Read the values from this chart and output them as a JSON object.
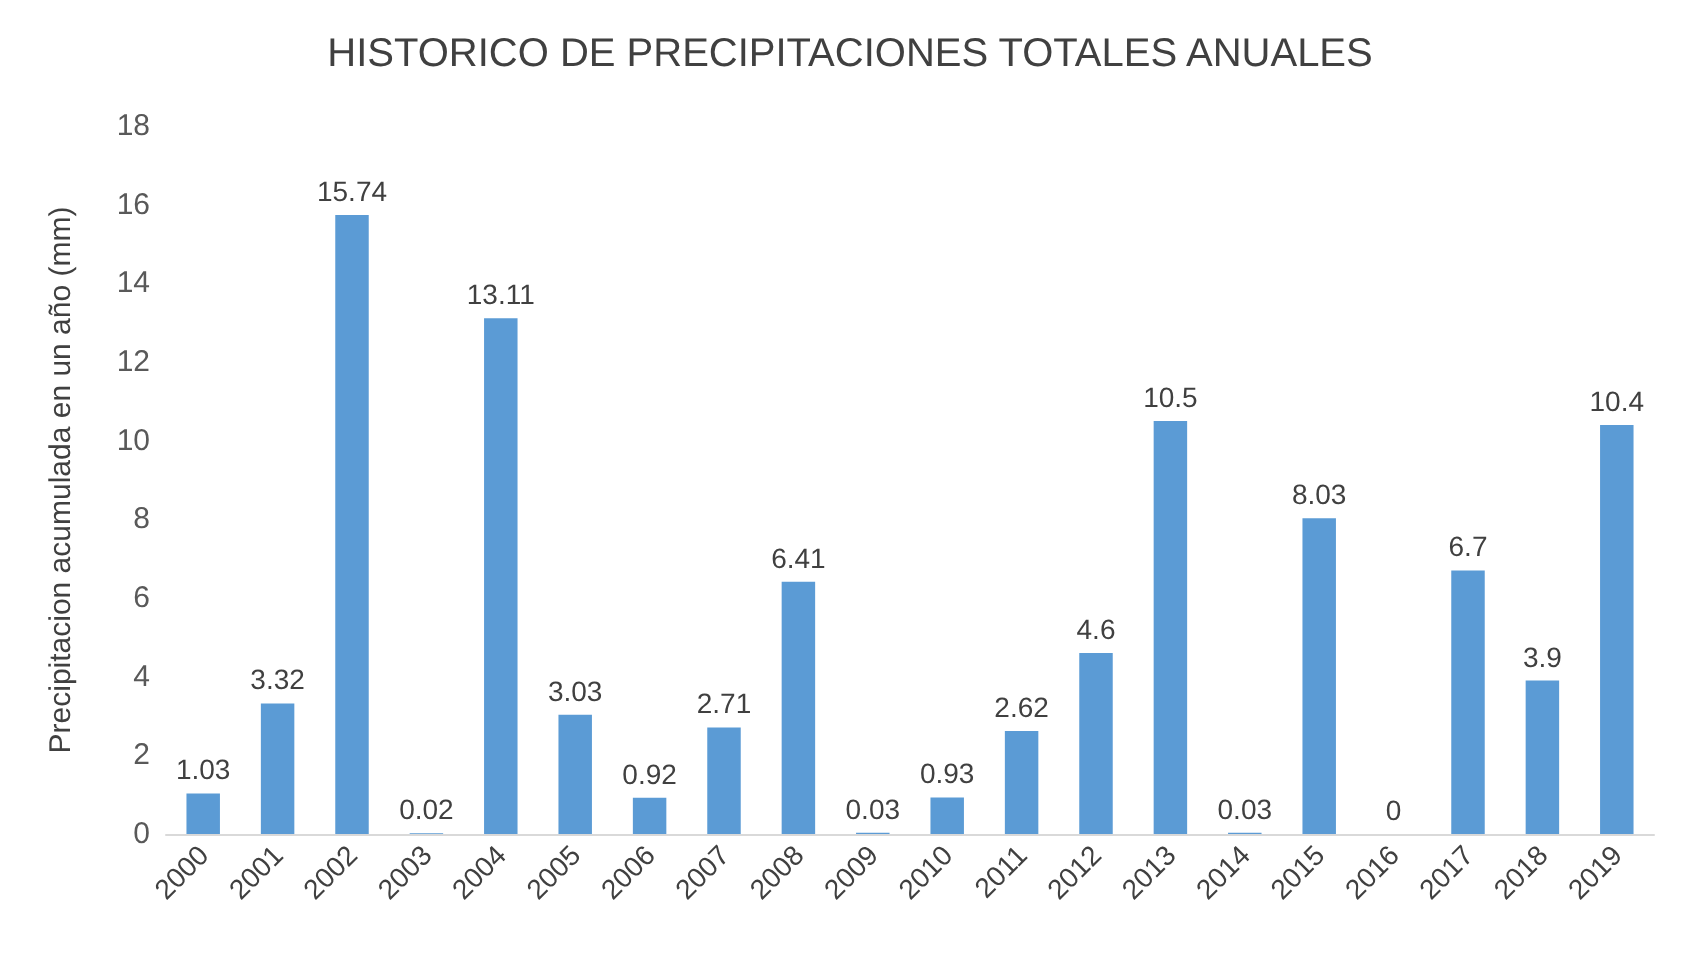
{
  "chart_data": {
    "type": "bar",
    "title": "HISTORICO DE PRECIPITACIONES TOTALES ANUALES",
    "ylabel": "Precipitacion acumulada en un año (mm)",
    "categories": [
      "2000",
      "2001",
      "2002",
      "2003",
      "2004",
      "2005",
      "2006",
      "2007",
      "2008",
      "2009",
      "2010",
      "2011",
      "2012",
      "2013",
      "2014",
      "2015",
      "2016",
      "2017",
      "2018",
      "2019"
    ],
    "values": [
      1.03,
      3.32,
      15.74,
      0.02,
      13.11,
      3.03,
      0.92,
      2.71,
      6.41,
      0.03,
      0.93,
      2.62,
      4.6,
      10.5,
      0.03,
      8.03,
      0,
      6.7,
      3.9,
      10.4
    ],
    "color": "#5b9bd5",
    "ylim": [
      0,
      18
    ],
    "yticks": [
      0,
      2,
      4,
      6,
      8,
      10,
      12,
      14,
      16,
      18
    ],
    "data_labels": true
  }
}
